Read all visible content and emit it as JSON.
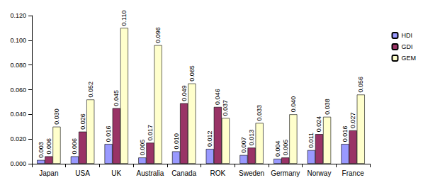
{
  "chart_data": {
    "type": "bar",
    "categories": [
      "Japan",
      "USA",
      "UK",
      "Australia",
      "Canada",
      "ROK",
      "Sweden",
      "Germany",
      "Norway",
      "France"
    ],
    "series": [
      {
        "name": "HDI",
        "color": "#9999ff",
        "values": [
          0.003,
          0.006,
          0.016,
          0.005,
          0.01,
          0.012,
          0.007,
          0.004,
          0.011,
          0.016
        ],
        "value_labels": [
          "0.003",
          "0.006",
          "0.016",
          "0.005",
          "0.010",
          "0.012",
          "0.007",
          "0.004",
          "0.011",
          "0.016"
        ]
      },
      {
        "name": "GDI",
        "color": "#993366",
        "values": [
          0.006,
          0.026,
          0.045,
          0.017,
          0.049,
          0.046,
          0.013,
          0.005,
          0.024,
          0.027
        ],
        "value_labels": [
          "0.006",
          "0.026",
          "0.045",
          "0.017",
          "0.049",
          "0.046",
          "0.013",
          "0.005",
          "0.024",
          "0.027"
        ]
      },
      {
        "name": "GEM",
        "color": "#ffffcc",
        "values": [
          0.03,
          0.052,
          0.11,
          0.096,
          0.065,
          0.037,
          0.033,
          0.04,
          0.038,
          0.056
        ],
        "value_labels": [
          "0.030",
          "0.052",
          "0.110",
          "0.096",
          "0.065",
          "0.037",
          "0.033",
          "0.040",
          "0.038",
          "0.056"
        ]
      }
    ],
    "ylim": [
      0,
      0.12
    ],
    "yticks": [
      {
        "value": 0,
        "label": "0.000"
      },
      {
        "value": 0.02,
        "label": "0.020"
      },
      {
        "value": 0.04,
        "label": "0.040"
      },
      {
        "value": 0.06,
        "label": "0.060"
      },
      {
        "value": 0.08,
        "label": "0.080"
      },
      {
        "value": 0.1,
        "label": "0.100"
      },
      {
        "value": 0.12,
        "label": "0.120"
      }
    ],
    "grid": false,
    "legend": "right",
    "data_labels": true
  }
}
